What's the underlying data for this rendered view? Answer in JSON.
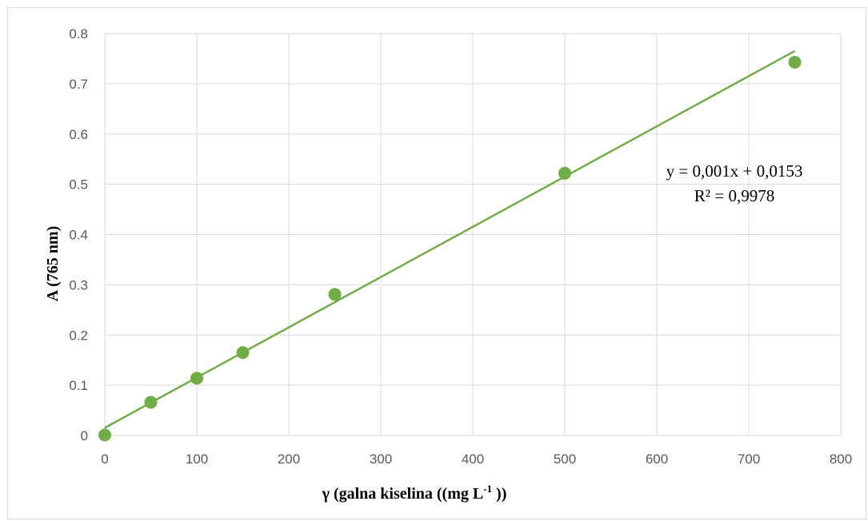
{
  "chart_data": {
    "type": "scatter",
    "xlabel": "γ (galna kiselina ((mg L",
    "xlabel_sup": "-1",
    "xlabel_end": " ))",
    "ylabel": "A (765 nm)",
    "xlim": [
      0,
      800
    ],
    "ylim": [
      0,
      0.8
    ],
    "x_ticks": [
      "0",
      "100",
      "200",
      "300",
      "400",
      "500",
      "600",
      "700",
      "800"
    ],
    "y_ticks": [
      "0",
      "0.1",
      "0.2",
      "0.3",
      "0.4",
      "0.5",
      "0.6",
      "0.7",
      "0.8"
    ],
    "grid": true,
    "series": [
      {
        "x": [
          0,
          50,
          100,
          150,
          250,
          500,
          750
        ],
        "y": [
          0.001,
          0.066,
          0.114,
          0.165,
          0.281,
          0.522,
          0.743
        ]
      }
    ],
    "trendline": {
      "slope": 0.001,
      "intercept": 0.0153,
      "x_range": [
        0,
        750
      ],
      "equation": "y = 0,001x + 0,0153",
      "r_squared": "R² = 0,9978"
    },
    "colors": {
      "marker": "#70ad47",
      "line": "#70ad47",
      "grid": "#d9d9d9"
    }
  }
}
